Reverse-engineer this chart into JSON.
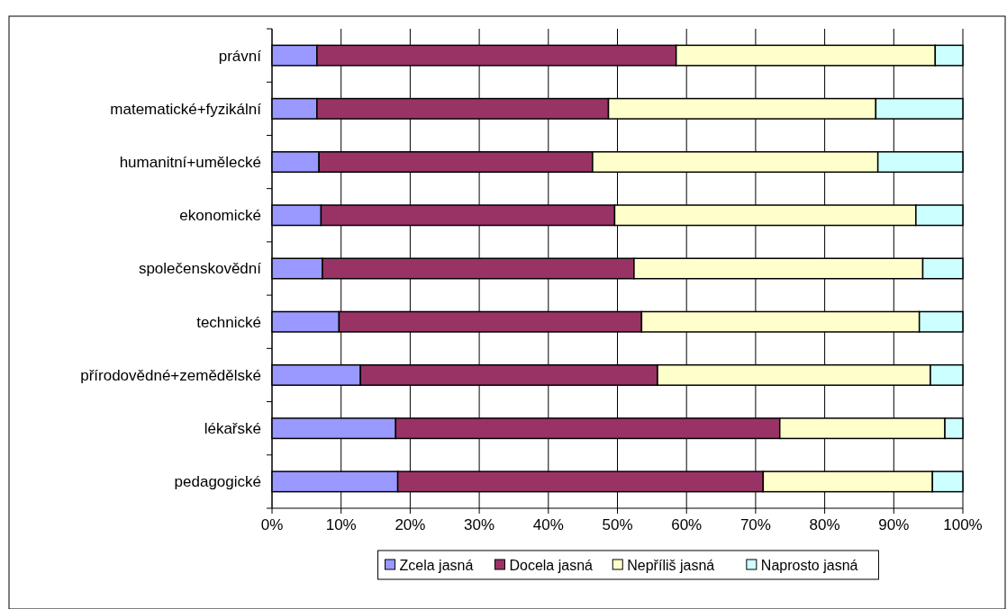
{
  "chart_data": {
    "type": "bar",
    "orientation": "horizontal",
    "stacked": true,
    "categories": [
      "právní",
      "matematické+fyzikální",
      "humanitní+umělecké",
      "ekonomické",
      "společenskovědní",
      "technické",
      "přírodovědné+zemědělské",
      "lékařské",
      "pedagogické"
    ],
    "series": [
      {
        "name": "Zcela jasná",
        "color": "#9999ff",
        "values": [
          6.5,
          6.5,
          6.8,
          7.1,
          7.3,
          9.7,
          12.8,
          17.9,
          18.2
        ]
      },
      {
        "name": "Docela jasná",
        "color": "#993366",
        "values": [
          52,
          42.2,
          39.6,
          42.5,
          45.1,
          43.8,
          43,
          55.6,
          52.9
        ]
      },
      {
        "name": "Nepříliš jasná",
        "color": "#ffffcc",
        "values": [
          37.5,
          38.7,
          41.3,
          43.6,
          41.8,
          40.2,
          39.5,
          23.9,
          24.5
        ]
      },
      {
        "name": "Naprosto jasná",
        "color": "#ccffff",
        "values": [
          4,
          12.6,
          12.3,
          6.8,
          5.8,
          6.3,
          4.7,
          2.6,
          4.4
        ]
      }
    ],
    "xlim": [
      0,
      100
    ],
    "xticks": [
      {
        "value": 0,
        "label": "0%"
      },
      {
        "value": 10,
        "label": "10%"
      },
      {
        "value": 20,
        "label": "20%"
      },
      {
        "value": 30,
        "label": "30%"
      },
      {
        "value": 40,
        "label": "40%"
      },
      {
        "value": 50,
        "label": "50%"
      },
      {
        "value": 60,
        "label": "60%"
      },
      {
        "value": 70,
        "label": "70%"
      },
      {
        "value": 80,
        "label": "80%"
      },
      {
        "value": 90,
        "label": "90%"
      },
      {
        "value": 100,
        "label": "100%"
      }
    ],
    "grid": "x",
    "legend": "bottom"
  }
}
